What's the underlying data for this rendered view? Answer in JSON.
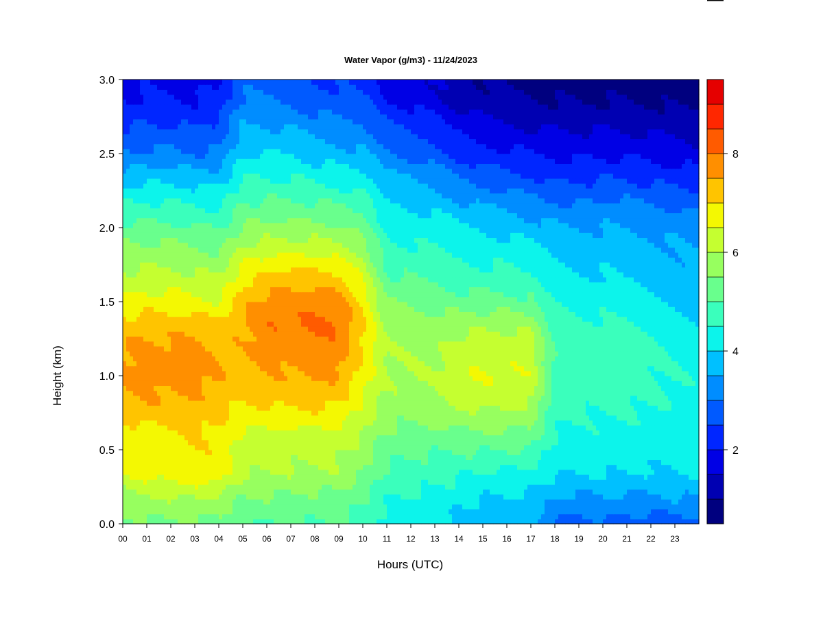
{
  "chart_data": {
    "type": "heatmap",
    "title": "Water Vapor (g/m3) - 11/24/2023",
    "xlabel": "Hours (UTC)",
    "ylabel": "Height (km)",
    "xlim": [
      0,
      24
    ],
    "ylim": [
      0,
      3.0
    ],
    "x_ticks": [
      "00",
      "01",
      "02",
      "03",
      "04",
      "05",
      "06",
      "07",
      "08",
      "09",
      "10",
      "11",
      "12",
      "13",
      "14",
      "15",
      "16",
      "17",
      "18",
      "19",
      "20",
      "21",
      "22",
      "23"
    ],
    "y_ticks": [
      "0.0",
      "0.5",
      "1.0",
      "1.5",
      "2.0",
      "2.5",
      "3.0"
    ],
    "colorbar": {
      "range": [
        0.5,
        9.5
      ],
      "ticks": [
        "2",
        "4",
        "6",
        "8"
      ],
      "levels": [
        0.5,
        1.0,
        1.5,
        2.0,
        2.5,
        3.0,
        3.5,
        4.0,
        4.5,
        5.0,
        5.5,
        6.0,
        6.5,
        7.0,
        7.5,
        8.0,
        8.5,
        9.0,
        9.5
      ],
      "colors": [
        "#00007f",
        "#0000b2",
        "#0000e5",
        "#0026ff",
        "#005aff",
        "#008dff",
        "#00c0ff",
        "#0cf4eb",
        "#3affbc",
        "#69ff8d",
        "#97ff5f",
        "#c5ff30",
        "#f4f802",
        "#ffc400",
        "#ff8f00",
        "#ff5b00",
        "#ff2700",
        "#e50000",
        "#a50000"
      ]
    },
    "x": [
      0,
      1,
      2,
      3,
      4,
      5,
      6,
      7,
      8,
      9,
      10,
      11,
      12,
      13,
      14,
      15,
      16,
      17,
      18,
      19,
      20,
      21,
      22,
      23,
      24
    ],
    "y": [
      0.0,
      0.15,
      0.35,
      0.6,
      0.8,
      1.0,
      1.2,
      1.35,
      1.5,
      1.7,
      1.9,
      2.1,
      2.3,
      2.5,
      2.7,
      2.85,
      3.0
    ],
    "z": [
      [
        5.3,
        5.4,
        5.4,
        5.4,
        5.4,
        5.0,
        5.0,
        5.0,
        5.0,
        5.0,
        4.8,
        4.3,
        4.2,
        4.1,
        3.9,
        3.7,
        3.7,
        3.6,
        2.9,
        2.7,
        2.9,
        2.8,
        2.7,
        2.7,
        2.8
      ],
      [
        5.7,
        5.8,
        5.9,
        5.9,
        5.8,
        5.4,
        5.4,
        5.3,
        5.3,
        5.3,
        5.0,
        4.5,
        4.4,
        4.3,
        4.1,
        3.9,
        3.9,
        3.8,
        3.5,
        3.3,
        3.4,
        3.3,
        3.3,
        3.4,
        3.4
      ],
      [
        6.5,
        6.7,
        6.8,
        6.9,
        6.8,
        6.1,
        6.0,
        6.0,
        5.9,
        5.9,
        5.5,
        4.9,
        4.8,
        4.7,
        4.6,
        4.5,
        4.4,
        4.4,
        4.1,
        4.0,
        4.1,
        4.0,
        4.0,
        4.0,
        4.1
      ],
      [
        6.7,
        6.8,
        6.9,
        7.0,
        6.9,
        6.4,
        6.4,
        6.3,
        6.3,
        6.3,
        6.0,
        5.4,
        5.3,
        5.3,
        5.4,
        5.4,
        5.4,
        5.3,
        4.5,
        4.3,
        4.4,
        4.3,
        4.3,
        4.3,
        4.2
      ],
      [
        7.3,
        7.4,
        7.4,
        7.4,
        7.2,
        6.9,
        7.0,
        7.1,
        7.1,
        7.0,
        6.4,
        5.8,
        5.8,
        5.8,
        6.0,
        6.1,
        6.1,
        6.0,
        4.7,
        4.6,
        4.6,
        4.6,
        4.5,
        4.4,
        4.3
      ],
      [
        7.6,
        7.7,
        7.7,
        7.7,
        7.5,
        7.2,
        7.4,
        7.5,
        7.6,
        7.5,
        6.8,
        6.0,
        6.0,
        6.0,
        6.4,
        6.5,
        6.5,
        6.4,
        4.9,
        4.8,
        4.8,
        4.7,
        4.6,
        4.5,
        4.4
      ],
      [
        7.5,
        7.6,
        7.6,
        7.6,
        7.4,
        7.4,
        7.7,
        7.8,
        7.9,
        7.8,
        7.0,
        6.0,
        5.9,
        5.9,
        6.2,
        6.3,
        6.3,
        6.2,
        4.9,
        4.8,
        4.8,
        4.7,
        4.6,
        4.4,
        4.3
      ],
      [
        7.2,
        7.3,
        7.3,
        7.3,
        7.1,
        7.5,
        7.9,
        8.0,
        8.1,
        8.0,
        7.1,
        5.8,
        5.7,
        5.7,
        5.8,
        5.9,
        5.9,
        5.8,
        4.8,
        4.6,
        4.6,
        4.5,
        4.4,
        4.2,
        4.1
      ],
      [
        6.6,
        6.7,
        6.7,
        6.6,
        6.5,
        7.3,
        7.7,
        7.8,
        7.8,
        7.7,
        6.9,
        5.5,
        5.4,
        5.3,
        5.2,
        5.2,
        5.2,
        5.1,
        4.5,
        4.3,
        4.3,
        4.2,
        4.1,
        4.0,
        3.8
      ],
      [
        6.0,
        6.1,
        6.1,
        6.0,
        5.9,
        6.7,
        7.0,
        7.1,
        7.1,
        7.0,
        6.3,
        5.0,
        4.9,
        4.8,
        4.7,
        4.6,
        4.6,
        4.5,
        4.1,
        4.0,
        4.0,
        3.9,
        3.8,
        3.7,
        3.6
      ],
      [
        5.5,
        5.5,
        5.5,
        5.4,
        5.3,
        5.9,
        6.1,
        6.1,
        6.1,
        6.0,
        5.6,
        4.6,
        4.5,
        4.4,
        4.3,
        4.2,
        4.1,
        4.0,
        3.8,
        3.7,
        3.7,
        3.7,
        3.6,
        3.5,
        3.4
      ],
      [
        4.8,
        4.8,
        4.8,
        4.7,
        4.6,
        5.2,
        5.3,
        5.3,
        5.3,
        5.2,
        5.0,
        4.2,
        4.1,
        4.0,
        3.8,
        3.7,
        3.6,
        3.4,
        3.3,
        3.2,
        3.3,
        3.3,
        3.2,
        3.1,
        3.0
      ],
      [
        3.9,
        4.0,
        4.0,
        3.9,
        3.9,
        4.6,
        4.6,
        4.6,
        4.5,
        4.4,
        4.3,
        3.7,
        3.6,
        3.4,
        3.1,
        2.9,
        2.8,
        2.7,
        2.5,
        2.5,
        2.6,
        2.6,
        2.5,
        2.4,
        2.3
      ],
      [
        3.0,
        3.1,
        3.1,
        3.0,
        3.1,
        4.0,
        4.0,
        4.0,
        3.8,
        3.7,
        3.6,
        3.1,
        2.9,
        2.7,
        2.4,
        2.2,
        2.1,
        2.0,
        1.9,
        1.9,
        1.9,
        1.9,
        1.8,
        1.8,
        1.7
      ],
      [
        2.4,
        2.5,
        2.5,
        2.4,
        2.6,
        3.5,
        3.5,
        3.4,
        3.2,
        3.1,
        3.0,
        2.5,
        2.3,
        2.1,
        1.8,
        1.6,
        1.5,
        1.4,
        1.4,
        1.4,
        1.4,
        1.4,
        1.3,
        1.3,
        1.2
      ],
      [
        2.0,
        2.1,
        2.1,
        2.0,
        2.2,
        3.1,
        3.1,
        3.0,
        2.8,
        2.7,
        2.6,
        2.1,
        1.9,
        1.7,
        1.4,
        1.2,
        1.1,
        1.1,
        1.0,
        1.0,
        1.0,
        1.0,
        1.0,
        0.9,
        0.9
      ],
      [
        1.8,
        1.9,
        1.9,
        1.8,
        2.0,
        2.8,
        2.8,
        2.7,
        2.5,
        2.4,
        2.3,
        1.9,
        1.7,
        1.5,
        1.2,
        1.0,
        0.9,
        0.9,
        0.8,
        0.8,
        0.8,
        0.8,
        0.8,
        0.7,
        0.7
      ]
    ]
  }
}
